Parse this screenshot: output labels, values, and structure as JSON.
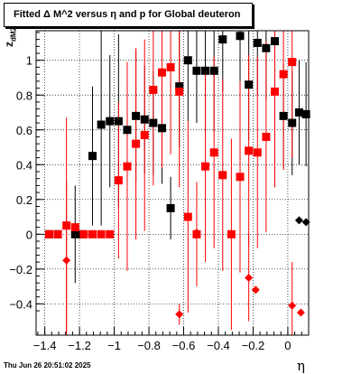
{
  "chart_data": {
    "type": "scatter",
    "title": "Fitted Δ M^2 versus η and p for Global deuteron",
    "xlabel": "η",
    "ylabel_main": "z",
    "ylabel_sub": "dM2",
    "xlim": [
      -1.45,
      0.12
    ],
    "ylim": [
      -0.58,
      1.17
    ],
    "xticks": [
      -1.4,
      -1.2,
      -1,
      -0.8,
      -0.6,
      -0.4,
      -0.2,
      0
    ],
    "xtick_labels": [
      "−1.4",
      "−1.2",
      "−1",
      "−0.8",
      "−0.6",
      "−0.4",
      "−0.2",
      "0"
    ],
    "yticks": [
      -0.4,
      -0.2,
      0,
      0.2,
      0.4,
      0.6,
      0.8,
      1
    ],
    "ytick_labels": [
      "−0.4",
      "−0.2",
      "0",
      "0.2",
      "0.4",
      "0.6",
      "0.8",
      "1"
    ],
    "grid": true,
    "series": [
      {
        "marker": "square",
        "color": "#000000",
        "points": [
          {
            "x": -1.375,
            "y": 0.0,
            "err": 0.0
          },
          {
            "x": -1.325,
            "y": 0.0,
            "err": 0.0
          },
          {
            "x": -1.225,
            "y": 0.0,
            "err": 0.28
          },
          {
            "x": -1.185,
            "y": 0.0,
            "err": 0.0
          },
          {
            "x": -1.125,
            "y": 0.45,
            "err": 0.4
          },
          {
            "x": -1.075,
            "y": 0.63,
            "err": 0.58
          },
          {
            "x": -1.025,
            "y": 0.65,
            "err": 0.38
          },
          {
            "x": -0.975,
            "y": 0.65,
            "err": 0.5
          },
          {
            "x": -0.925,
            "y": 0.6,
            "err": 0.3
          },
          {
            "x": -0.875,
            "y": 0.68,
            "err": 0.38
          },
          {
            "x": -0.825,
            "y": 0.66,
            "err": 0.31
          },
          {
            "x": -0.775,
            "y": 0.64,
            "err": 0.3
          },
          {
            "x": -0.725,
            "y": 0.61,
            "err": 0.32
          },
          {
            "x": -0.675,
            "y": 0.15,
            "err": 0.18
          },
          {
            "x": -0.625,
            "y": 0.85,
            "err": 0.35
          },
          {
            "x": -0.575,
            "y": 1.0,
            "err": 0.35
          },
          {
            "x": -0.525,
            "y": 0.94,
            "err": 0.3
          },
          {
            "x": -0.475,
            "y": 0.94,
            "err": 0.35
          },
          {
            "x": -0.425,
            "y": 0.94,
            "err": 0.35
          },
          {
            "x": -0.375,
            "y": 1.12,
            "err": 0.3
          },
          {
            "x": -0.275,
            "y": 1.14,
            "err": 0.3
          },
          {
            "x": -0.225,
            "y": 0.86,
            "err": 0.32
          },
          {
            "x": -0.175,
            "y": 1.1,
            "err": 0.3
          },
          {
            "x": -0.125,
            "y": 1.07,
            "err": 0.3
          },
          {
            "x": -0.075,
            "y": 1.11,
            "err": 0.3
          },
          {
            "x": -0.025,
            "y": 0.68,
            "err": 0.3
          },
          {
            "x": 0.025,
            "y": 0.64,
            "err": 0.3
          },
          {
            "x": 0.065,
            "y": 0.7,
            "err": 0.3
          },
          {
            "x": 0.105,
            "y": 0.69,
            "err": 0.3
          }
        ]
      },
      {
        "marker": "diamond",
        "color": "#000000",
        "points": [
          {
            "x": 0.065,
            "y": 0.08,
            "err": 0.0
          },
          {
            "x": 0.105,
            "y": 0.07,
            "err": 0.0
          }
        ]
      },
      {
        "marker": "square",
        "color": "#ff0000",
        "points": [
          {
            "x": -1.375,
            "y": 0.0,
            "err": 0.0
          },
          {
            "x": -1.325,
            "y": 0.0,
            "err": 0.0
          },
          {
            "x": -1.275,
            "y": 0.05,
            "err": 0.62
          },
          {
            "x": -1.225,
            "y": 0.04,
            "err": 0.0
          },
          {
            "x": -1.175,
            "y": 0.0,
            "err": 0.0
          },
          {
            "x": -1.125,
            "y": 0.0,
            "err": 0.0
          },
          {
            "x": -1.075,
            "y": 0.0,
            "err": 0.0
          },
          {
            "x": -1.025,
            "y": 0.0,
            "err": 0.0
          },
          {
            "x": -0.975,
            "y": 0.31,
            "err": 0.45
          },
          {
            "x": -0.925,
            "y": 0.39,
            "err": 0.6
          },
          {
            "x": -0.875,
            "y": 0.52,
            "err": 0.55
          },
          {
            "x": -0.825,
            "y": 0.57,
            "err": 0.55
          },
          {
            "x": -0.775,
            "y": 0.83,
            "err": 0.55
          },
          {
            "x": -0.725,
            "y": 0.93,
            "err": 0.55
          },
          {
            "x": -0.675,
            "y": 0.96,
            "err": 0.5
          },
          {
            "x": -0.625,
            "y": 0.82,
            "err": 0.55
          },
          {
            "x": -0.575,
            "y": 0.1,
            "err": 0.55
          },
          {
            "x": -0.525,
            "y": 0.0,
            "err": 0.3
          },
          {
            "x": -0.475,
            "y": 0.39,
            "err": 0.55
          },
          {
            "x": -0.425,
            "y": 0.47,
            "err": 0.55
          },
          {
            "x": -0.375,
            "y": 0.34,
            "err": 0.55
          },
          {
            "x": -0.325,
            "y": 0.0,
            "err": 0.55
          },
          {
            "x": -0.275,
            "y": 0.33,
            "err": 0.55
          },
          {
            "x": -0.225,
            "y": 0.48,
            "err": 0.55
          },
          {
            "x": -0.175,
            "y": 0.47,
            "err": 0.55
          },
          {
            "x": -0.125,
            "y": 0.56,
            "err": 0.55
          },
          {
            "x": -0.075,
            "y": 0.82,
            "err": 0.55
          },
          {
            "x": -0.025,
            "y": 0.92,
            "err": 0.55
          },
          {
            "x": 0.025,
            "y": 0.99,
            "err": 0.55
          }
        ]
      },
      {
        "marker": "diamond",
        "color": "#ff0000",
        "points": [
          {
            "x": -1.275,
            "y": -0.15,
            "err": 0.45
          },
          {
            "x": -0.625,
            "y": -0.46,
            "err": 0.06
          },
          {
            "x": -0.525,
            "y": 0.01,
            "err": 0.0
          },
          {
            "x": -0.225,
            "y": -0.25,
            "err": 0.25
          },
          {
            "x": -0.185,
            "y": -0.32,
            "err": 0.0
          },
          {
            "x": 0.025,
            "y": -0.41,
            "err": 0.25
          },
          {
            "x": 0.075,
            "y": -0.45,
            "err": 0.0
          }
        ]
      }
    ]
  },
  "footer": "Thu Jun 26 20:51:02 2025"
}
